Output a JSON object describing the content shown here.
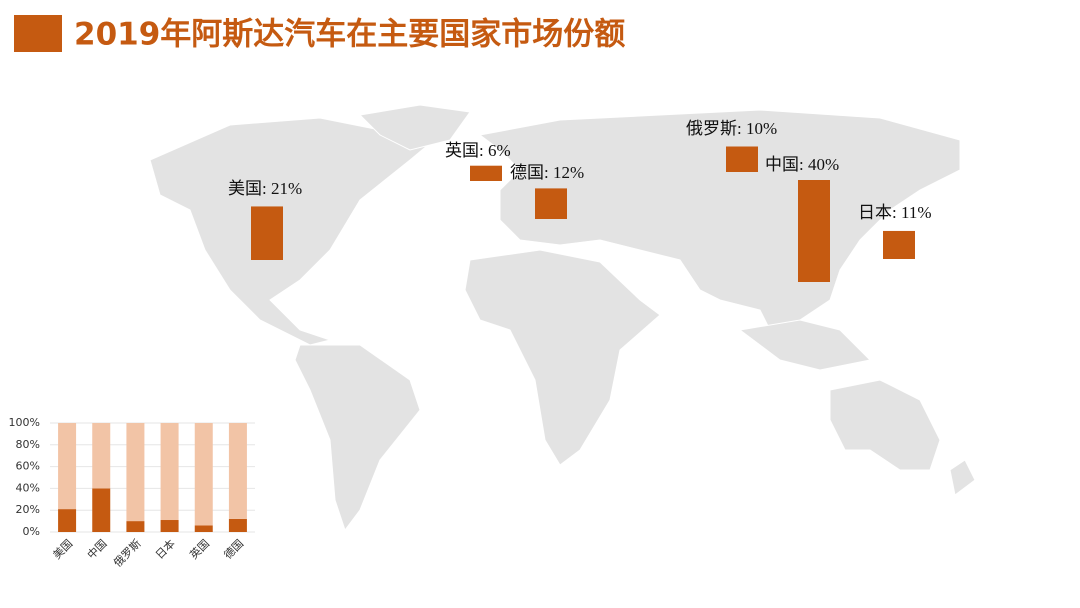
{
  "title": "2019年阿斯达汽车在主要国家市场份额",
  "chart_data": [
    {
      "type": "bar",
      "color": "#c55a11",
      "categories": [
        "美国",
        "英国",
        "德国",
        "俄罗斯",
        "中国",
        "日本"
      ],
      "values": [
        21,
        6,
        12,
        10,
        40,
        11
      ],
      "value_labels": [
        "美国: 21%",
        "英国: 6%",
        "德国: 12%",
        "俄罗斯: 10%",
        "中国: 40%",
        "日本: 11%"
      ]
    },
    {
      "type": "stacked",
      "categories": [
        "美国",
        "中国",
        "俄罗斯",
        "日本",
        "英国",
        "德国"
      ],
      "series": [
        {
          "color": "#c55a11",
          "values": [
            21,
            40,
            10,
            11,
            6,
            12
          ]
        },
        {
          "color": "#f2c4a6",
          "values": [
            79,
            60,
            90,
            89,
            94,
            88
          ]
        }
      ],
      "ylim": [
        0,
        100
      ],
      "yticks": [
        {
          "value": 0,
          "label": "0%"
        },
        {
          "value": 20,
          "label": "20%"
        },
        {
          "value": 40,
          "label": "40%"
        },
        {
          "value": 60,
          "label": "60%"
        },
        {
          "value": 80,
          "label": "80%"
        },
        {
          "value": 100,
          "label": "100%"
        }
      ],
      "grid": true
    }
  ]
}
